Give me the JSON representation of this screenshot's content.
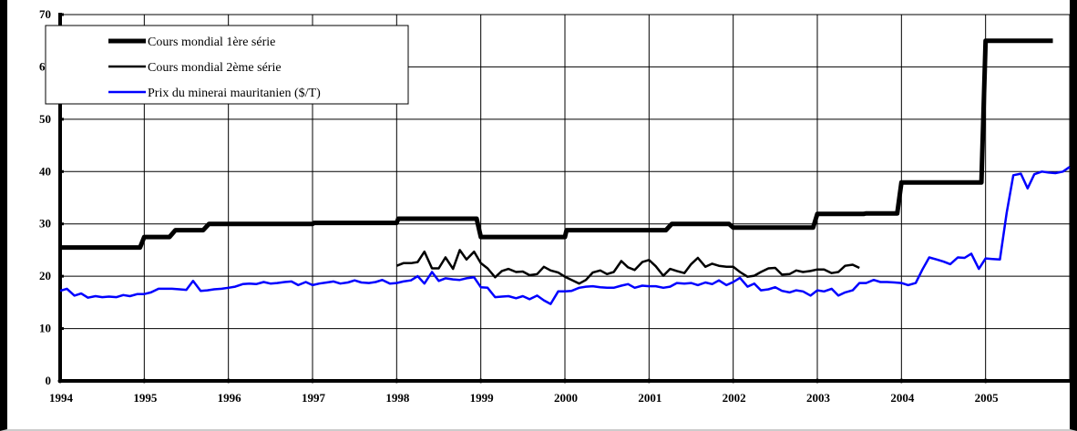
{
  "chart_data": {
    "type": "line",
    "title": "",
    "xlabel": "",
    "ylabel": "",
    "xlim": [
      1994,
      2006
    ],
    "ylim": [
      0,
      70
    ],
    "yticks": [
      0,
      10,
      20,
      30,
      40,
      50,
      60,
      70
    ],
    "xticks": [
      1994,
      1995,
      1996,
      1997,
      1998,
      1999,
      2000,
      2001,
      2002,
      2003,
      2004,
      2005
    ],
    "grid": true,
    "legend_position": "top-left",
    "series": [
      {
        "name": "Cours mondial 1ère série",
        "color": "#000000",
        "style": "thick",
        "x": [
          1994.0,
          1994.95,
          1995.0,
          1995.3,
          1995.37,
          1995.7,
          1995.77,
          1997.0,
          1997.02,
          1998.0,
          1998.02,
          1998.95,
          1999.0,
          2000.0,
          2000.02,
          2001.2,
          2001.27,
          2001.95,
          2002.0,
          2002.95,
          2003.0,
          2003.55,
          2003.58,
          2003.95,
          2004.0,
          2004.95,
          2005.0,
          2005.8
        ],
        "y": [
          25.5,
          25.5,
          27.5,
          27.5,
          28.8,
          28.8,
          30.0,
          30.0,
          30.2,
          30.2,
          31.0,
          31.0,
          27.5,
          27.5,
          28.8,
          28.8,
          30.0,
          30.0,
          29.3,
          29.3,
          31.9,
          31.9,
          32.0,
          32.0,
          37.9,
          37.9,
          65.0,
          65.0
        ]
      },
      {
        "name": "Cours mondial 2ème série",
        "color": "#000000",
        "style": "medium",
        "x": [
          1998.0,
          1998.08,
          1998.17,
          1998.25,
          1998.33,
          1998.42,
          1998.5,
          1998.58,
          1998.67,
          1998.75,
          1998.83,
          1998.92,
          1999.0,
          1999.08,
          1999.17,
          1999.25,
          1999.33,
          1999.42,
          1999.5,
          1999.58,
          1999.67,
          1999.75,
          1999.83,
          1999.92,
          2000.0,
          2000.08,
          2000.17,
          2000.25,
          2000.33,
          2000.42,
          2000.5,
          2000.58,
          2000.67,
          2000.75,
          2000.83,
          2000.92,
          2001.0,
          2001.08,
          2001.17,
          2001.25,
          2001.33,
          2001.42,
          2001.5,
          2001.58,
          2001.67,
          2001.75,
          2001.83,
          2001.92,
          2002.0,
          2002.08,
          2002.17,
          2002.25,
          2002.33,
          2002.42,
          2002.5,
          2002.58,
          2002.67,
          2002.75,
          2002.83,
          2002.92,
          2003.0,
          2003.08,
          2003.17,
          2003.25,
          2003.33,
          2003.42,
          2003.5
        ],
        "y": [
          22.0,
          22.5,
          22.5,
          22.7,
          24.7,
          21.5,
          21.5,
          23.6,
          21.4,
          25.0,
          23.2,
          24.7,
          22.5,
          21.5,
          19.8,
          21.0,
          21.4,
          20.8,
          20.9,
          20.2,
          20.4,
          21.8,
          21.1,
          20.7,
          19.9,
          19.3,
          18.6,
          19.3,
          20.7,
          21.1,
          20.4,
          20.8,
          22.9,
          21.7,
          21.2,
          22.7,
          23.1,
          21.9,
          20.1,
          21.4,
          21.0,
          20.6,
          22.3,
          23.5,
          21.8,
          22.4,
          22.0,
          21.8,
          21.8,
          20.8,
          19.9,
          20.1,
          20.8,
          21.5,
          21.6,
          20.3,
          20.4,
          21.1,
          20.8,
          21.0,
          21.3,
          21.3,
          20.6,
          20.8,
          22.0,
          22.2,
          21.6
        ]
      },
      {
        "name": "Prix du minerai mauritanien ($/T)",
        "color": "#0000ff",
        "style": "medium",
        "x": [
          1994.0,
          1994.08,
          1994.17,
          1994.25,
          1994.33,
          1994.42,
          1994.5,
          1994.58,
          1994.67,
          1994.75,
          1994.83,
          1994.92,
          1995.0,
          1995.08,
          1995.17,
          1995.25,
          1995.33,
          1995.42,
          1995.5,
          1995.58,
          1995.67,
          1995.75,
          1995.83,
          1995.92,
          1996.0,
          1996.08,
          1996.17,
          1996.25,
          1996.33,
          1996.42,
          1996.5,
          1996.58,
          1996.67,
          1996.75,
          1996.83,
          1996.92,
          1997.0,
          1997.08,
          1997.17,
          1997.25,
          1997.33,
          1997.42,
          1997.5,
          1997.58,
          1997.67,
          1997.75,
          1997.83,
          1997.92,
          1998.0,
          1998.08,
          1998.17,
          1998.25,
          1998.33,
          1998.42,
          1998.5,
          1998.58,
          1998.67,
          1998.75,
          1998.83,
          1998.92,
          1999.0,
          1999.08,
          1999.17,
          1999.25,
          1999.33,
          1999.42,
          1999.5,
          1999.58,
          1999.67,
          1999.75,
          1999.83,
          1999.92,
          2000.0,
          2000.08,
          2000.17,
          2000.25,
          2000.33,
          2000.42,
          2000.5,
          2000.58,
          2000.67,
          2000.75,
          2000.83,
          2000.92,
          2001.0,
          2001.08,
          2001.17,
          2001.25,
          2001.33,
          2001.42,
          2001.5,
          2001.58,
          2001.67,
          2001.75,
          2001.83,
          2001.92,
          2002.0,
          2002.08,
          2002.17,
          2002.25,
          2002.33,
          2002.42,
          2002.5,
          2002.58,
          2002.67,
          2002.75,
          2002.83,
          2002.92,
          2003.0,
          2003.08,
          2003.17,
          2003.25,
          2003.33,
          2003.42,
          2003.5,
          2003.58,
          2003.67,
          2003.75,
          2003.83,
          2003.92,
          2004.0,
          2004.08,
          2004.17,
          2004.25,
          2004.33,
          2004.42,
          2004.5,
          2004.58,
          2004.67,
          2004.75,
          2004.83,
          2004.92,
          2005.0,
          2005.08,
          2005.17,
          2005.25,
          2005.33,
          2005.42,
          2005.5,
          2005.58,
          2005.67,
          2005.75,
          2005.83,
          2005.92,
          2006.0
        ],
        "y": [
          17.2,
          17.6,
          16.3,
          16.7,
          15.9,
          16.2,
          16.0,
          16.1,
          16.0,
          16.4,
          16.2,
          16.6,
          16.6,
          16.9,
          17.6,
          17.6,
          17.6,
          17.5,
          17.4,
          19.1,
          17.2,
          17.3,
          17.5,
          17.6,
          17.8,
          18.0,
          18.5,
          18.6,
          18.5,
          18.9,
          18.6,
          18.7,
          18.9,
          19.0,
          18.3,
          18.9,
          18.3,
          18.6,
          18.8,
          19.0,
          18.6,
          18.8,
          19.2,
          18.8,
          18.7,
          18.9,
          19.3,
          18.6,
          18.7,
          19.0,
          19.2,
          20.0,
          18.6,
          20.8,
          19.1,
          19.6,
          19.4,
          19.3,
          19.6,
          19.8,
          17.9,
          17.8,
          16.0,
          16.1,
          16.2,
          15.8,
          16.2,
          15.6,
          16.3,
          15.4,
          14.7,
          17.1,
          17.1,
          17.2,
          17.8,
          18.0,
          18.1,
          17.9,
          17.8,
          17.8,
          18.2,
          18.5,
          17.8,
          18.2,
          18.1,
          18.1,
          17.8,
          18.0,
          18.7,
          18.6,
          18.7,
          18.3,
          18.8,
          18.5,
          19.2,
          18.3,
          18.9,
          19.7,
          18.0,
          18.6,
          17.3,
          17.5,
          17.9,
          17.2,
          16.9,
          17.3,
          17.1,
          16.3,
          17.3,
          17.1,
          17.6,
          16.3,
          16.9,
          17.3,
          18.7,
          18.7,
          19.3,
          18.9,
          18.9,
          18.8,
          18.7,
          18.3,
          18.7,
          21.3,
          23.6,
          23.2,
          22.8,
          22.3,
          23.6,
          23.5,
          24.3,
          21.4,
          23.4,
          23.3,
          23.2,
          32.1,
          39.3,
          39.6,
          36.8,
          39.5,
          40.0,
          39.8,
          39.7,
          40.0,
          40.9
        ]
      }
    ]
  }
}
